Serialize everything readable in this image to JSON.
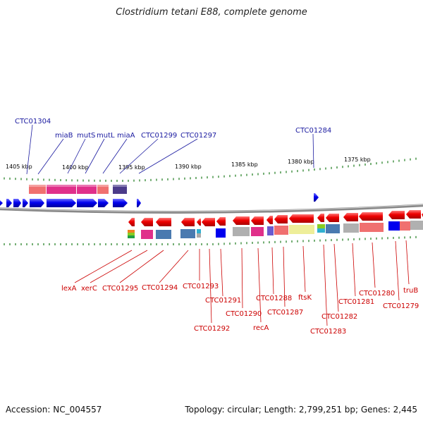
{
  "title": "Clostridium tetani E88, complete genome",
  "footer": {
    "accession": "Accession: NC_004557",
    "summary": "Topology: circular; Length: 2,799,251 bp; Genes: 2,445"
  },
  "colors": {
    "forward_strand": "#0000ee",
    "reverse_strand": "#ee0000",
    "tick": "#1a7a1a",
    "backbone": "#808080"
  },
  "kbp_labels": [
    "1405 kbp",
    "1400 kbp",
    "1395 kbp",
    "1390 kbp",
    "1385 kbp",
    "1380 kbp",
    "1375 kbp"
  ],
  "top_labels": [
    "CTC01304",
    "miaB",
    "mutS",
    "mutL",
    "miaA",
    "CTC01299",
    "CTC01297",
    "CTC01284"
  ],
  "bottom_labels": [
    "lexA",
    "xerC",
    "CTC01295",
    "CTC01294",
    "CTC01293",
    "CTC01291",
    "CTC01292",
    "CTC01290",
    "recA",
    "CTC01288",
    "CTC01287",
    "ftsK",
    "CTC01283",
    "CTC01282",
    "CTC01281",
    "CTC01280",
    "truB",
    "CTC01279"
  ]
}
